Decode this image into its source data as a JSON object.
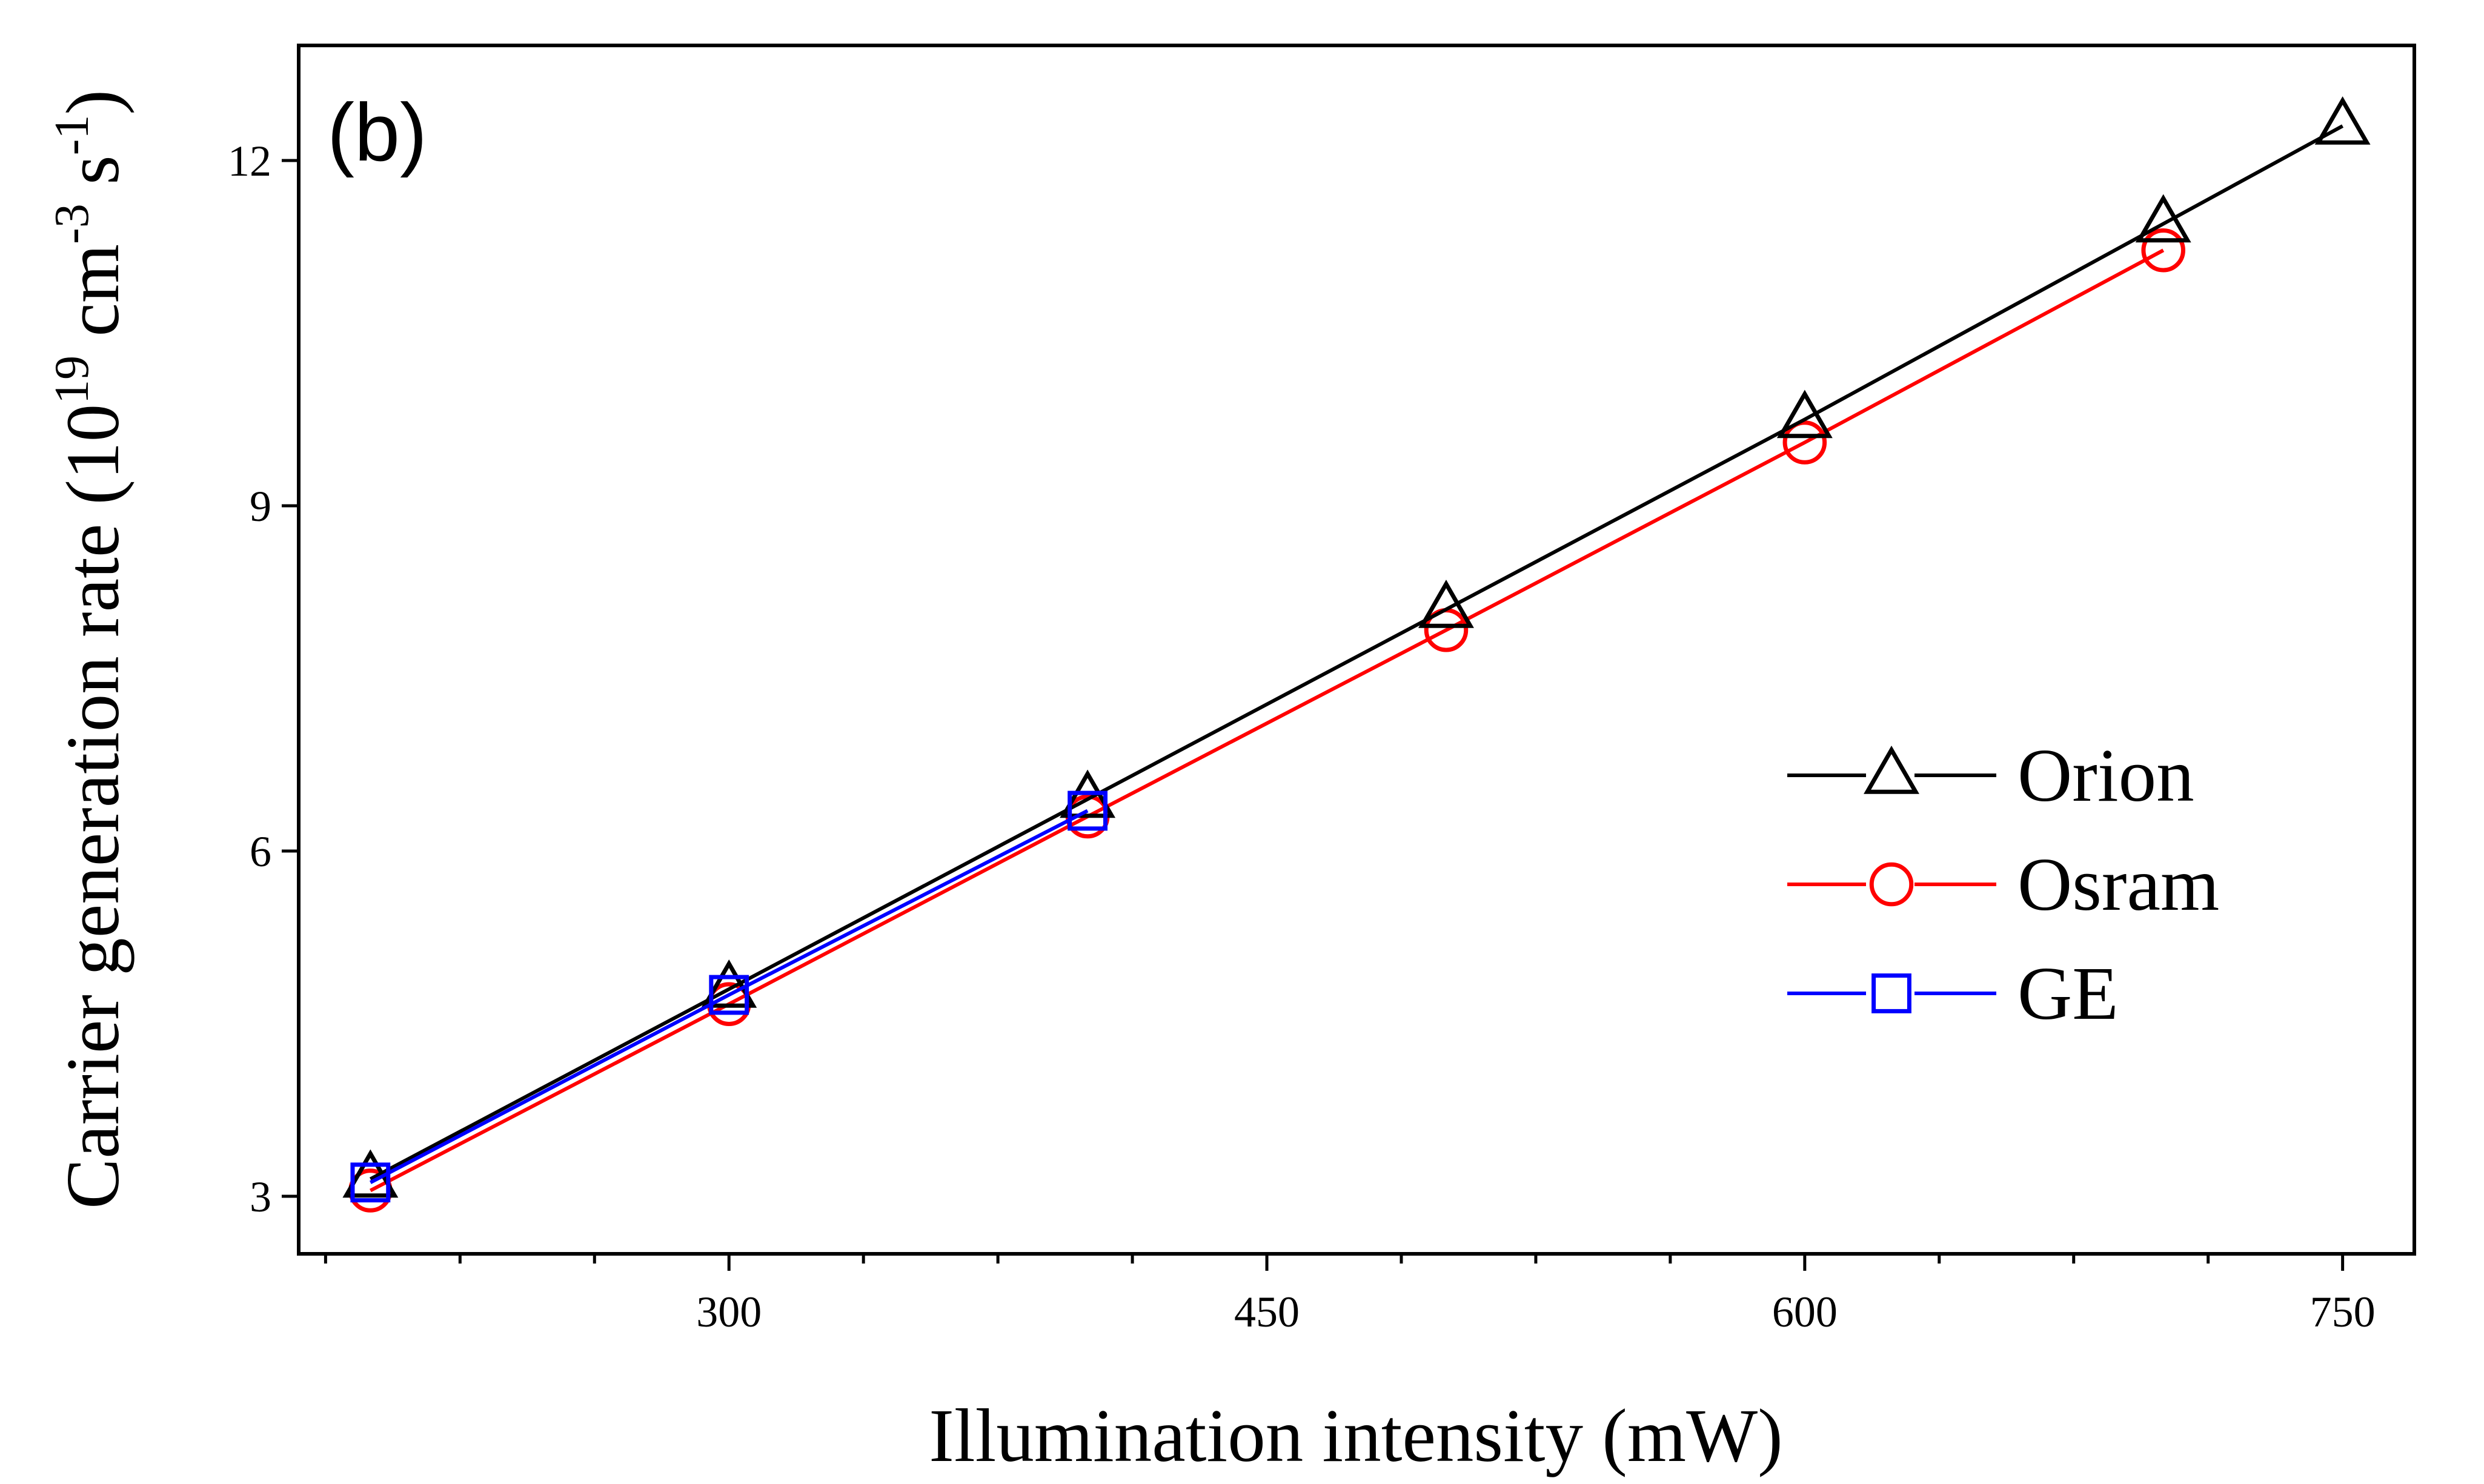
{
  "chart_data": {
    "type": "line",
    "panel_label": "(b)",
    "xlabel": "Illumination intensity (mW)",
    "ylabel": {
      "prefix": "Carrier generation rate (10",
      "exp1": "19",
      "mid": " cm",
      "exp2": "-3",
      "mid2": " s",
      "exp3": "-1",
      "suffix": ")"
    },
    "xlim": [
      180,
      770
    ],
    "ylim": [
      2.5,
      13
    ],
    "x_major_ticks": [
      300,
      450,
      600,
      750
    ],
    "x_minor_ticks": [
      187.5,
      225,
      262.5,
      337.5,
      375,
      412.5,
      487.5,
      525,
      562.5,
      637.5,
      675,
      712.5
    ],
    "y_major_ticks": [
      3,
      6,
      9,
      12
    ],
    "legend_position": "right-middle",
    "series": [
      {
        "name": "Orion",
        "color": "#000000",
        "marker": "triangle",
        "x": [
          200,
          300,
          400,
          500,
          600,
          700,
          750
        ],
        "y": [
          3.15,
          4.8,
          6.45,
          8.1,
          9.75,
          11.45,
          12.3
        ]
      },
      {
        "name": "Osram",
        "color": "#ff0000",
        "marker": "circle",
        "x": [
          200,
          300,
          400,
          500,
          600,
          700
        ],
        "y": [
          3.05,
          4.67,
          6.3,
          7.92,
          9.55,
          11.22
        ]
      },
      {
        "name": "GE",
        "color": "#0000ff",
        "marker": "square",
        "x": [
          200,
          300,
          400
        ],
        "y": [
          3.12,
          4.75,
          6.35
        ]
      }
    ]
  }
}
